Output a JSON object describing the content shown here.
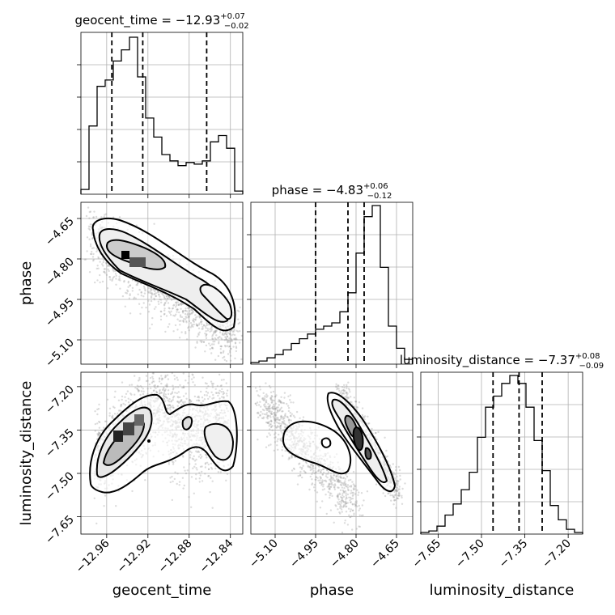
{
  "chart_data": {
    "type": "corner",
    "parameters": [
      "geocent_time",
      "phase",
      "luminosity_distance"
    ],
    "titles": [
      {
        "param": "geocent_time",
        "median": "-12.93",
        "plus": "+0.07",
        "minus": "-0.02"
      },
      {
        "param": "phase",
        "median": "-4.83",
        "plus": "+0.06",
        "minus": "-0.12"
      },
      {
        "param": "luminosity_distance",
        "median": "-7.37",
        "plus": "+0.08",
        "minus": "-0.09"
      }
    ],
    "ranges": {
      "geocent_time": [
        -12.985,
        -12.828
      ],
      "phase": [
        -5.19,
        -4.59
      ],
      "luminosity_distance": [
        -7.71,
        -7.15
      ]
    },
    "ticks": {
      "geocent_time": {
        "values": [
          -12.96,
          -12.92,
          -12.88,
          -12.84
        ],
        "labels": [
          "−12.96",
          "−12.92",
          "−12.88",
          "−12.84"
        ]
      },
      "phase": {
        "values": [
          -5.1,
          -4.95,
          -4.8,
          -4.65
        ],
        "labels": [
          "−5.10",
          "−4.95",
          "−4.80",
          "−4.65"
        ]
      },
      "luminosity_distance": {
        "values": [
          -7.65,
          -7.5,
          -7.35,
          -7.2
        ],
        "labels": [
          "−7.65",
          "−7.50",
          "−7.35",
          "−7.20"
        ]
      }
    },
    "quantiles": {
      "geocent_time": [
        -12.955,
        -12.925,
        -12.863
      ],
      "phase": [
        -4.95,
        -4.83,
        -4.77
      ],
      "luminosity_distance": [
        -7.46,
        -7.37,
        -7.29
      ]
    },
    "histograms": {
      "geocent_time": [
        0.03,
        0.43,
        0.68,
        0.72,
        0.84,
        0.91,
        0.99,
        0.74,
        0.48,
        0.36,
        0.25,
        0.21,
        0.18,
        0.2,
        0.19,
        0.21,
        0.33,
        0.37,
        0.29,
        0.02
      ],
      "phase": [
        0.01,
        0.02,
        0.04,
        0.06,
        0.09,
        0.13,
        0.16,
        0.19,
        0.22,
        0.24,
        0.26,
        0.33,
        0.45,
        0.7,
        0.93,
        1.0,
        0.61,
        0.24,
        0.1,
        0.03
      ],
      "luminosity_distance": [
        0.01,
        0.02,
        0.05,
        0.12,
        0.19,
        0.28,
        0.39,
        0.61,
        0.8,
        0.87,
        0.95,
        1.0,
        0.95,
        0.8,
        0.59,
        0.4,
        0.18,
        0.09,
        0.03,
        0.01
      ]
    },
    "grid": true
  }
}
